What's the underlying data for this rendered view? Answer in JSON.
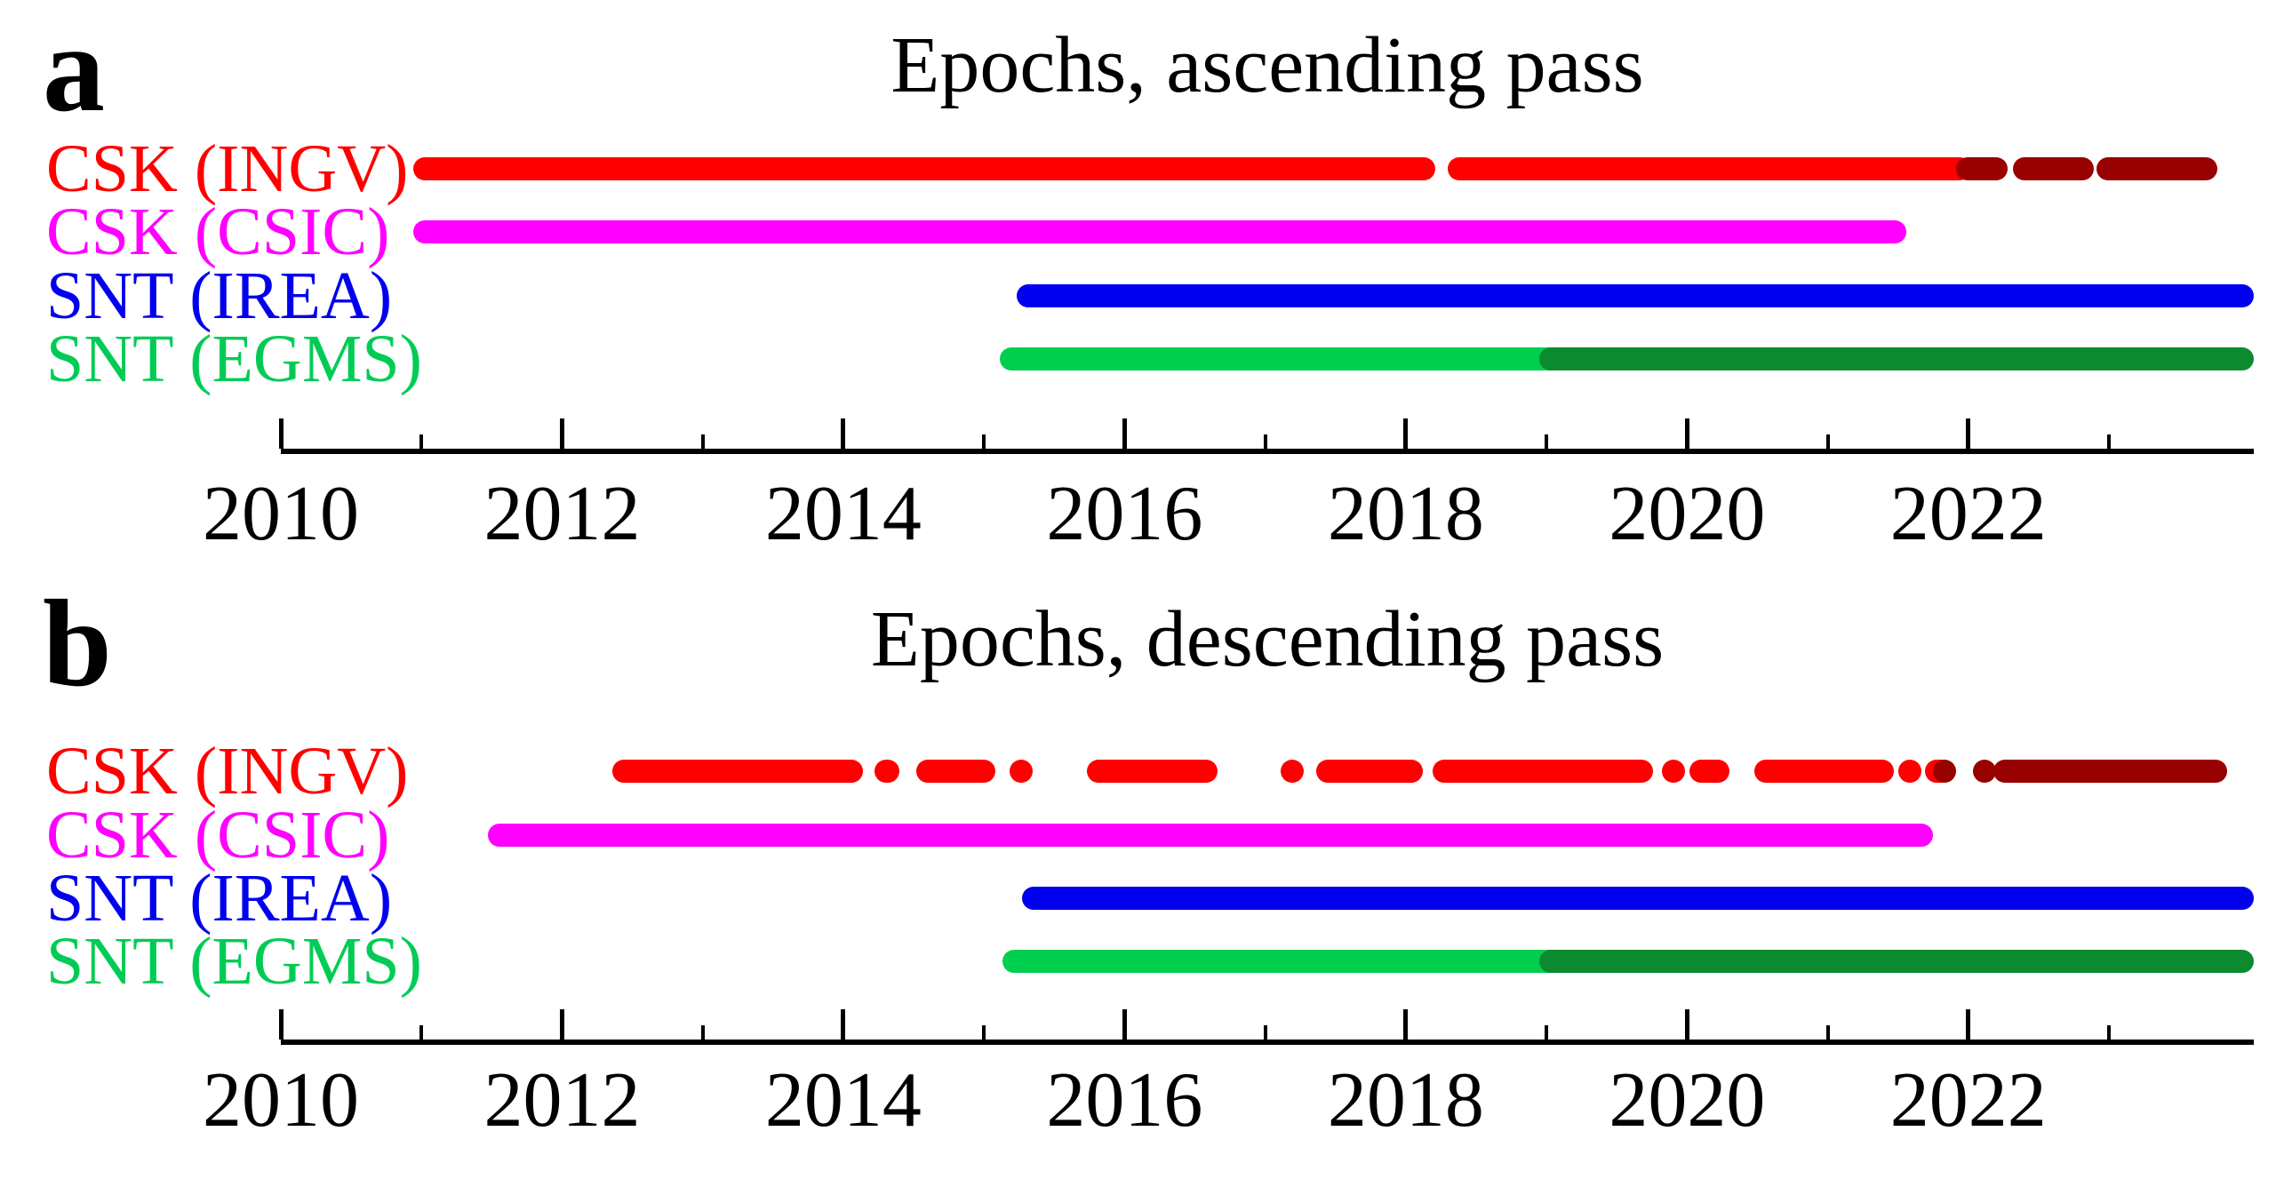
{
  "figure_background": "#FFFFFF",
  "chart_data": {
    "type": "timeline",
    "description": "Acquisition epochs of SAR datasets shown as horizontal dot-bars vs time (years). Segments are [start_year, end_year] intervals.",
    "axis": {
      "year_min": 2010,
      "year_max": 2024.03,
      "major_ticks": [
        2010,
        2012,
        2014,
        2016,
        2018,
        2020,
        2022
      ],
      "minor_ticks": [
        2011,
        2013,
        2015,
        2017,
        2019,
        2021,
        2023
      ],
      "tick_labels": [
        "2010",
        "2012",
        "2014",
        "2016",
        "2018",
        "2020",
        "2022"
      ],
      "grid": false
    },
    "panels": [
      {
        "id": "a",
        "corner_label": "a",
        "title": "Epochs, ascending pass",
        "rows": [
          {
            "label": "CSK (INGV)",
            "label_color": "#FF0000",
            "series": [
              {
                "name": "csk-ingv",
                "color": "#FF0000",
                "segments": [
                  [
                    2010.94,
                    2018.21
                  ],
                  [
                    2018.3,
                    2022.02
                  ]
                ]
              },
              {
                "name": "csk-ingv-recent",
                "color": "#990000",
                "segments": [
                  [
                    2021.91,
                    2022.28
                  ],
                  [
                    2022.32,
                    2022.89
                  ],
                  [
                    2022.91,
                    2023.77
                  ]
                ]
              }
            ]
          },
          {
            "label": "CSK (CSIC)",
            "label_color": "#FF00FF",
            "series": [
              {
                "name": "csk-csic",
                "color": "#FF00FF",
                "segments": [
                  [
                    2010.94,
                    2021.56
                  ]
                ]
              }
            ]
          },
          {
            "label": "SNT (IREA)",
            "label_color": "#0000EE",
            "series": [
              {
                "name": "snt-irea",
                "color": "#0000EE",
                "segments": [
                  [
                    2015.23,
                    2024.03
                  ]
                ]
              }
            ]
          },
          {
            "label": "SNT (EGMS)",
            "label_color": "#00CC55",
            "series": [
              {
                "name": "snt-egms",
                "color": "#00CE4F",
                "segments": [
                  [
                    2015.11,
                    2022.05
                  ]
                ]
              },
              {
                "name": "snt-egms-recent",
                "color": "#0C8A2F",
                "segments": [
                  [
                    2018.95,
                    2024.03
                  ]
                ]
              }
            ]
          }
        ]
      },
      {
        "id": "b",
        "corner_label": "b",
        "title": "Epochs, descending pass",
        "rows": [
          {
            "label": "CSK (INGV)",
            "label_color": "#FF0000",
            "series": [
              {
                "name": "csk-ingv",
                "color": "#FF0000",
                "segments": [
                  [
                    2012.36,
                    2014.14
                  ],
                  [
                    2014.22,
                    2014.4
                  ],
                  [
                    2014.52,
                    2015.08
                  ],
                  [
                    2015.18,
                    2015.34
                  ],
                  [
                    2015.73,
                    2016.66
                  ],
                  [
                    2017.11,
                    2017.27
                  ],
                  [
                    2017.36,
                    2018.12
                  ],
                  [
                    2018.19,
                    2019.76
                  ],
                  [
                    2019.82,
                    2019.98
                  ],
                  [
                    2020.02,
                    2020.3
                  ],
                  [
                    2020.48,
                    2021.47
                  ],
                  [
                    2021.5,
                    2021.66
                  ],
                  [
                    2021.69,
                    2021.89
                  ]
                ]
              },
              {
                "name": "csk-ingv-recent",
                "color": "#990000",
                "segments": [
                  [
                    2021.75,
                    2021.89
                  ],
                  [
                    2022.03,
                    2022.1
                  ],
                  [
                    2022.18,
                    2023.84
                  ]
                ]
              }
            ]
          },
          {
            "label": "CSK (CSIC)",
            "label_color": "#FF00FF",
            "series": [
              {
                "name": "csk-csic",
                "color": "#FF00FF",
                "segments": [
                  [
                    2011.47,
                    2021.75
                  ]
                ]
              }
            ]
          },
          {
            "label": "SNT (IREA)",
            "label_color": "#0000EE",
            "series": [
              {
                "name": "snt-irea",
                "color": "#0000EE",
                "segments": [
                  [
                    2015.27,
                    2024.03
                  ]
                ]
              }
            ]
          },
          {
            "label": "SNT (EGMS)",
            "label_color": "#00CC55",
            "series": [
              {
                "name": "snt-egms",
                "color": "#00CE4F",
                "segments": [
                  [
                    2015.13,
                    2022.05
                  ]
                ]
              },
              {
                "name": "snt-egms-recent",
                "color": "#0C8A2F",
                "segments": [
                  [
                    2018.95,
                    2024.03
                  ]
                ]
              }
            ]
          }
        ]
      }
    ]
  }
}
